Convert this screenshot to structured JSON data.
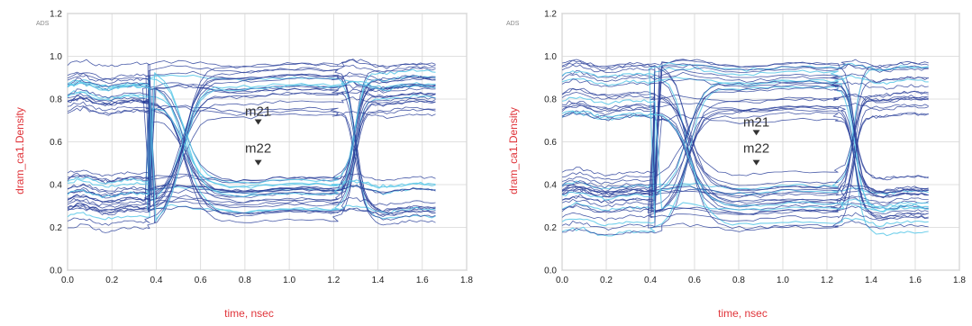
{
  "chart_data": [
    {
      "type": "line",
      "subtype": "eye-diagram",
      "tool_tag": "ADS",
      "xlabel": "time, nsec",
      "ylabel": "dram_ca1.Density",
      "xlim": [
        0.0,
        1.8
      ],
      "ylim": [
        0.0,
        1.2
      ],
      "x_ticks": [
        "0.0",
        "0.2",
        "0.4",
        "0.6",
        "0.8",
        "1.0",
        "1.2",
        "1.4",
        "1.6",
        "1.8"
      ],
      "y_ticks": [
        "0.0",
        "0.2",
        "0.4",
        "0.6",
        "0.8",
        "1.0",
        "1.2"
      ],
      "grid": true,
      "data_x_end": 1.66,
      "eye_crossings_x": [
        0.37,
        1.22
      ],
      "crossing_level": 0.61,
      "high_level": {
        "min": 0.68,
        "max": 1.0,
        "center": 0.82
      },
      "low_level": {
        "min": 0.16,
        "max": 0.49,
        "center": 0.35
      },
      "markers": [
        {
          "name": "m21",
          "x": 0.86,
          "y": 0.68
        },
        {
          "name": "m22",
          "x": 0.86,
          "y": 0.49
        }
      ],
      "trace_color": "#2a3f9a",
      "highlight_color": "#5bc8e8"
    },
    {
      "type": "line",
      "subtype": "eye-diagram",
      "tool_tag": "ADS",
      "xlabel": "time, nsec",
      "ylabel": "dram_ca1.Density",
      "xlim": [
        0.0,
        1.8
      ],
      "ylim": [
        0.0,
        1.2
      ],
      "x_ticks": [
        "0.0",
        "0.2",
        "0.4",
        "0.6",
        "0.8",
        "1.0",
        "1.2",
        "1.4",
        "1.6",
        "1.8"
      ],
      "y_ticks": [
        "0.0",
        "0.2",
        "0.4",
        "0.6",
        "0.8",
        "1.0",
        "1.2"
      ],
      "grid": true,
      "data_x_end": 1.66,
      "eye_crossings_x": [
        0.42,
        1.25
      ],
      "crossing_level": 0.59,
      "high_level": {
        "min": 0.64,
        "max": 1.05,
        "center": 0.84
      },
      "low_level": {
        "min": 0.13,
        "max": 0.51,
        "center": 0.31
      },
      "markers": [
        {
          "name": "m21",
          "x": 0.88,
          "y": 0.63
        },
        {
          "name": "m22",
          "x": 0.88,
          "y": 0.49
        }
      ],
      "trace_color": "#2a3f9a",
      "highlight_color": "#5bc8e8"
    }
  ]
}
